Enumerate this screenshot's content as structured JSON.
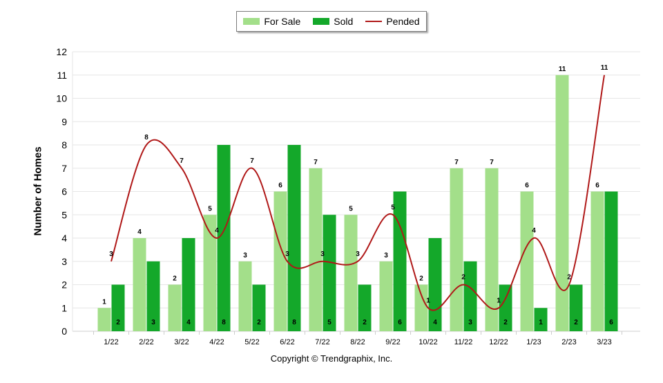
{
  "chart_data": {
    "type": "bar",
    "categories": [
      "1/22",
      "2/22",
      "3/22",
      "4/22",
      "5/22",
      "6/22",
      "7/22",
      "8/22",
      "9/22",
      "10/22",
      "11/22",
      "12/22",
      "1/23",
      "2/23",
      "3/23"
    ],
    "series": [
      {
        "name": "For Sale",
        "kind": "bar",
        "color": "#a3df8a",
        "values": [
          1,
          4,
          2,
          5,
          3,
          6,
          7,
          5,
          3,
          2,
          7,
          7,
          6,
          11,
          6
        ]
      },
      {
        "name": "Sold",
        "kind": "bar",
        "color": "#14a82a",
        "values": [
          2,
          3,
          4,
          8,
          2,
          8,
          5,
          2,
          6,
          4,
          3,
          2,
          1,
          2,
          6
        ]
      },
      {
        "name": "Pended",
        "kind": "line",
        "color": "#b01818",
        "values": [
          3,
          8,
          7,
          4,
          7,
          3,
          3,
          3,
          5,
          1,
          2,
          1,
          4,
          2,
          11
        ]
      }
    ],
    "title": "",
    "xlabel": "",
    "ylabel": "Number of Homes",
    "ylim": [
      0,
      12
    ],
    "yticks": [
      0,
      1,
      2,
      3,
      4,
      5,
      6,
      7,
      8,
      9,
      10,
      11,
      12
    ],
    "grid": true,
    "legend_position": "top-center",
    "footer": "Copyright © Trendgraphix, Inc."
  }
}
